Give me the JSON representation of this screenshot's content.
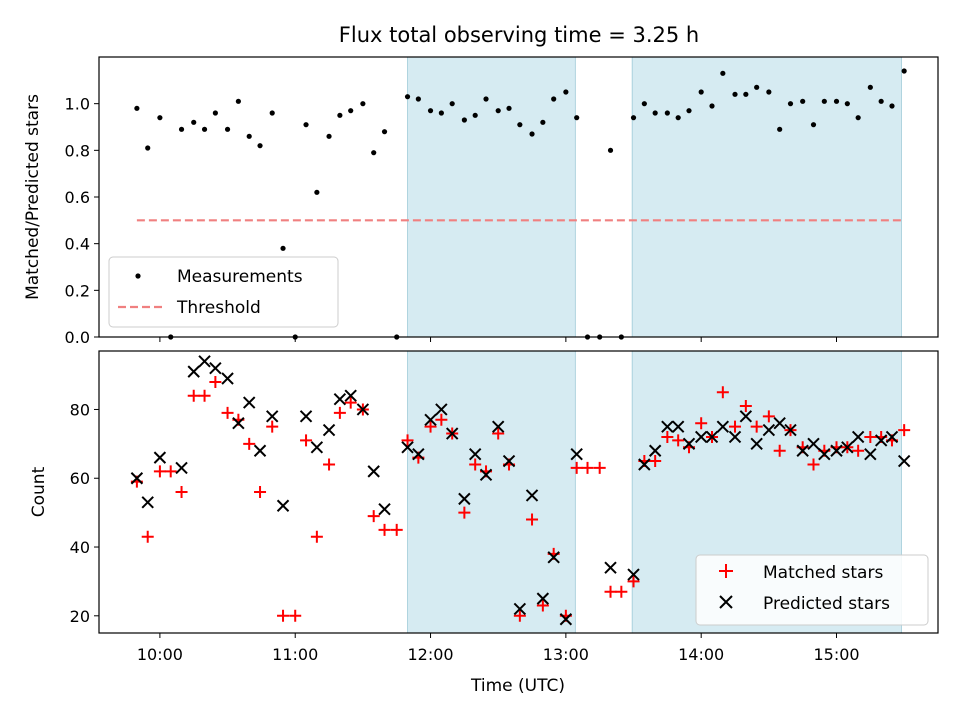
{
  "chart_data": [
    {
      "type": "scatter",
      "title": "Flux total observing time = 3.25 h",
      "xlabel": "",
      "ylabel": "Matched/Predicted stars",
      "xlim": [
        9.55,
        15.75
      ],
      "ylim": [
        0.0,
        1.2
      ],
      "yticks": [
        0.0,
        0.2,
        0.4,
        0.6,
        0.8,
        1.0
      ],
      "ytick_labels": [
        "0.0",
        "0.2",
        "0.4",
        "0.6",
        "0.8",
        "1.0"
      ],
      "xticks": [
        10,
        11,
        12,
        13,
        14,
        15
      ],
      "shaded_regions": [
        [
          11.83,
          13.07
        ],
        [
          13.49,
          15.48
        ]
      ],
      "legend_location": "lower left",
      "series": [
        {
          "name": "Measurements",
          "kind": "scatter",
          "color": "#000000",
          "marker": "dot",
          "points": [
            [
              9.83,
              0.98
            ],
            [
              9.91,
              0.81
            ],
            [
              10.0,
              0.94
            ],
            [
              10.08,
              0.0
            ],
            [
              10.16,
              0.89
            ],
            [
              10.25,
              0.92
            ],
            [
              10.33,
              0.89
            ],
            [
              10.41,
              0.96
            ],
            [
              10.5,
              0.89
            ],
            [
              10.58,
              1.01
            ],
            [
              10.66,
              0.86
            ],
            [
              10.74,
              0.82
            ],
            [
              10.83,
              0.96
            ],
            [
              10.91,
              0.38
            ],
            [
              11.0,
              0.0
            ],
            [
              11.08,
              0.91
            ],
            [
              11.16,
              0.62
            ],
            [
              11.25,
              0.86
            ],
            [
              11.33,
              0.95
            ],
            [
              11.41,
              0.97
            ],
            [
              11.5,
              1.0
            ],
            [
              11.58,
              0.79
            ],
            [
              11.66,
              0.88
            ],
            [
              11.75,
              0.0
            ],
            [
              11.83,
              1.03
            ],
            [
              11.91,
              1.02
            ],
            [
              12.0,
              0.97
            ],
            [
              12.08,
              0.96
            ],
            [
              12.16,
              1.0
            ],
            [
              12.25,
              0.93
            ],
            [
              12.33,
              0.95
            ],
            [
              12.41,
              1.02
            ],
            [
              12.5,
              0.97
            ],
            [
              12.58,
              0.98
            ],
            [
              12.66,
              0.91
            ],
            [
              12.75,
              0.87
            ],
            [
              12.83,
              0.92
            ],
            [
              12.91,
              1.02
            ],
            [
              13.0,
              1.05
            ],
            [
              13.08,
              0.94
            ],
            [
              13.16,
              0.0
            ],
            [
              13.25,
              0.0
            ],
            [
              13.33,
              0.8
            ],
            [
              13.41,
              0.0
            ],
            [
              13.5,
              0.94
            ],
            [
              13.58,
              1.0
            ],
            [
              13.66,
              0.96
            ],
            [
              13.75,
              0.96
            ],
            [
              13.83,
              0.94
            ],
            [
              13.91,
              0.97
            ],
            [
              14.0,
              1.05
            ],
            [
              14.08,
              0.99
            ],
            [
              14.16,
              1.13
            ],
            [
              14.25,
              1.04
            ],
            [
              14.33,
              1.04
            ],
            [
              14.41,
              1.07
            ],
            [
              14.5,
              1.05
            ],
            [
              14.58,
              0.89
            ],
            [
              14.66,
              1.0
            ],
            [
              14.75,
              1.01
            ],
            [
              14.83,
              0.91
            ],
            [
              14.91,
              1.01
            ],
            [
              15.0,
              1.01
            ],
            [
              15.08,
              1.0
            ],
            [
              15.16,
              0.94
            ],
            [
              15.25,
              1.07
            ],
            [
              15.33,
              1.01
            ],
            [
              15.41,
              0.99
            ],
            [
              15.5,
              1.14
            ]
          ]
        },
        {
          "name": "Threshold",
          "kind": "dashed-line",
          "color": "#f08080",
          "points": [
            [
              9.83,
              0.5
            ],
            [
              15.5,
              0.5
            ]
          ]
        }
      ]
    },
    {
      "type": "scatter",
      "title": "",
      "xlabel": "Time (UTC)",
      "ylabel": "Count",
      "xlim": [
        9.55,
        15.75
      ],
      "ylim": [
        15,
        97
      ],
      "yticks": [
        20,
        40,
        60,
        80
      ],
      "ytick_labels": [
        "20",
        "40",
        "60",
        "80"
      ],
      "xticks": [
        10,
        11,
        12,
        13,
        14,
        15
      ],
      "xtick_labels": [
        "10:00",
        "11:00",
        "12:00",
        "13:00",
        "14:00",
        "15:00"
      ],
      "shaded_regions": [
        [
          11.83,
          13.07
        ],
        [
          13.49,
          15.48
        ]
      ],
      "legend_location": "lower right",
      "series": [
        {
          "name": "Matched stars",
          "kind": "scatter",
          "color": "#ff0000",
          "marker": "plus",
          "points": [
            [
              9.83,
              59
            ],
            [
              9.91,
              43
            ],
            [
              10.0,
              62
            ],
            [
              10.08,
              62
            ],
            [
              10.16,
              56
            ],
            [
              10.25,
              84
            ],
            [
              10.33,
              84
            ],
            [
              10.41,
              88
            ],
            [
              10.5,
              79
            ],
            [
              10.58,
              77
            ],
            [
              10.66,
              70
            ],
            [
              10.74,
              56
            ],
            [
              10.83,
              75
            ],
            [
              10.91,
              20
            ],
            [
              11.0,
              20
            ],
            [
              11.08,
              71
            ],
            [
              11.16,
              43
            ],
            [
              11.25,
              64
            ],
            [
              11.33,
              79
            ],
            [
              11.41,
              82
            ],
            [
              11.5,
              80
            ],
            [
              11.58,
              49
            ],
            [
              11.66,
              45
            ],
            [
              11.75,
              45
            ],
            [
              11.83,
              71
            ],
            [
              11.91,
              66
            ],
            [
              12.0,
              75
            ],
            [
              12.08,
              77
            ],
            [
              12.16,
              73
            ],
            [
              12.25,
              50
            ],
            [
              12.33,
              64
            ],
            [
              12.41,
              62
            ],
            [
              12.5,
              73
            ],
            [
              12.58,
              64
            ],
            [
              12.66,
              20
            ],
            [
              12.75,
              48
            ],
            [
              12.83,
              23
            ],
            [
              12.91,
              38
            ],
            [
              13.0,
              20
            ],
            [
              13.08,
              63
            ],
            [
              13.16,
              63
            ],
            [
              13.25,
              63
            ],
            [
              13.33,
              27
            ],
            [
              13.41,
              27
            ],
            [
              13.5,
              30
            ],
            [
              13.58,
              65
            ],
            [
              13.66,
              65
            ],
            [
              13.75,
              72
            ],
            [
              13.83,
              71
            ],
            [
              13.91,
              69
            ],
            [
              14.0,
              76
            ],
            [
              14.08,
              72
            ],
            [
              14.16,
              85
            ],
            [
              14.25,
              75
            ],
            [
              14.33,
              81
            ],
            [
              14.41,
              75
            ],
            [
              14.5,
              78
            ],
            [
              14.58,
              68
            ],
            [
              14.66,
              74
            ],
            [
              14.75,
              69
            ],
            [
              14.83,
              64
            ],
            [
              14.91,
              68
            ],
            [
              15.0,
              69
            ],
            [
              15.08,
              69
            ],
            [
              15.16,
              68
            ],
            [
              15.25,
              72
            ],
            [
              15.33,
              72
            ],
            [
              15.41,
              71
            ],
            [
              15.5,
              74
            ]
          ]
        },
        {
          "name": "Predicted stars",
          "kind": "scatter",
          "color": "#000000",
          "marker": "x",
          "points": [
            [
              9.83,
              60
            ],
            [
              9.91,
              53
            ],
            [
              10.0,
              66
            ],
            [
              10.16,
              63
            ],
            [
              10.25,
              91
            ],
            [
              10.33,
              94
            ],
            [
              10.41,
              92
            ],
            [
              10.5,
              89
            ],
            [
              10.58,
              76
            ],
            [
              10.66,
              82
            ],
            [
              10.74,
              68
            ],
            [
              10.83,
              78
            ],
            [
              10.91,
              52
            ],
            [
              11.08,
              78
            ],
            [
              11.16,
              69
            ],
            [
              11.25,
              74
            ],
            [
              11.33,
              83
            ],
            [
              11.41,
              84
            ],
            [
              11.5,
              80
            ],
            [
              11.58,
              62
            ],
            [
              11.66,
              51
            ],
            [
              11.83,
              69
            ],
            [
              11.91,
              67
            ],
            [
              12.0,
              77
            ],
            [
              12.08,
              80
            ],
            [
              12.16,
              73
            ],
            [
              12.25,
              54
            ],
            [
              12.33,
              67
            ],
            [
              12.41,
              61
            ],
            [
              12.5,
              75
            ],
            [
              12.58,
              65
            ],
            [
              12.66,
              22
            ],
            [
              12.75,
              55
            ],
            [
              12.83,
              25
            ],
            [
              12.91,
              37
            ],
            [
              13.0,
              19
            ],
            [
              13.08,
              67
            ],
            [
              13.33,
              34
            ],
            [
              13.5,
              32
            ],
            [
              13.58,
              64
            ],
            [
              13.66,
              68
            ],
            [
              13.75,
              75
            ],
            [
              13.83,
              75
            ],
            [
              13.91,
              70
            ],
            [
              14.0,
              72
            ],
            [
              14.08,
              72
            ],
            [
              14.16,
              75
            ],
            [
              14.25,
              72
            ],
            [
              14.33,
              78
            ],
            [
              14.41,
              70
            ],
            [
              14.5,
              74
            ],
            [
              14.58,
              76
            ],
            [
              14.66,
              74
            ],
            [
              14.75,
              68
            ],
            [
              14.83,
              70
            ],
            [
              14.91,
              67
            ],
            [
              15.0,
              68
            ],
            [
              15.08,
              69
            ],
            [
              15.16,
              72
            ],
            [
              15.25,
              67
            ],
            [
              15.33,
              71
            ],
            [
              15.41,
              72
            ],
            [
              15.5,
              65
            ]
          ]
        }
      ]
    }
  ]
}
